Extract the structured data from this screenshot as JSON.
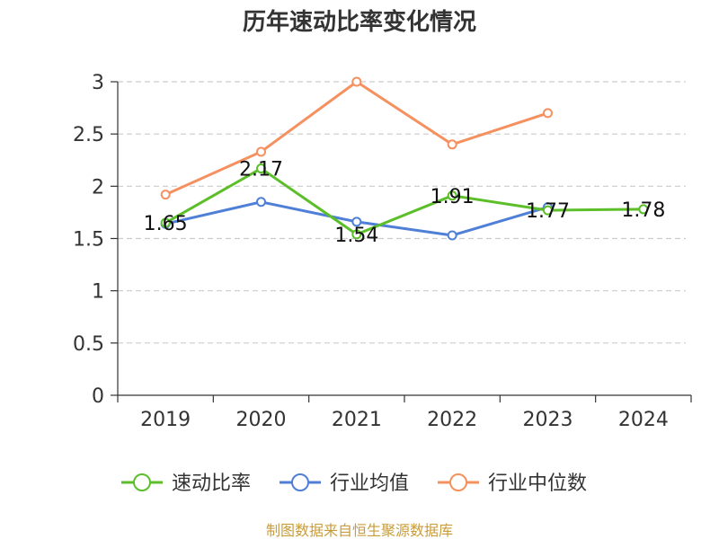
{
  "chart_data": {
    "type": "line",
    "title": "历年速动比率变化情况",
    "categories": [
      "2019",
      "2020",
      "2021",
      "2022",
      "2023",
      "2024"
    ],
    "ylim": [
      0,
      3
    ],
    "yticks": [
      "0",
      "0.5",
      "1",
      "1.5",
      "2",
      "2.5",
      "3"
    ],
    "grid": true,
    "legend_position": "bottom",
    "series": [
      {
        "name": "速动比率",
        "color": "#5cbf2a",
        "values": [
          1.65,
          2.17,
          1.54,
          1.91,
          1.77,
          1.78
        ],
        "labels": [
          "1.65",
          "2.17",
          "1.54",
          "1.91",
          "1.77",
          "1.78"
        ]
      },
      {
        "name": "行业均值",
        "color": "#4f7fd6",
        "values": [
          1.64,
          1.85,
          1.66,
          1.53,
          1.8,
          null
        ]
      },
      {
        "name": "行业中位数",
        "color": "#f5905f",
        "values": [
          1.92,
          2.33,
          3.0,
          2.4,
          2.7,
          null
        ]
      }
    ],
    "source": "制图数据来自恒生聚源数据库"
  }
}
